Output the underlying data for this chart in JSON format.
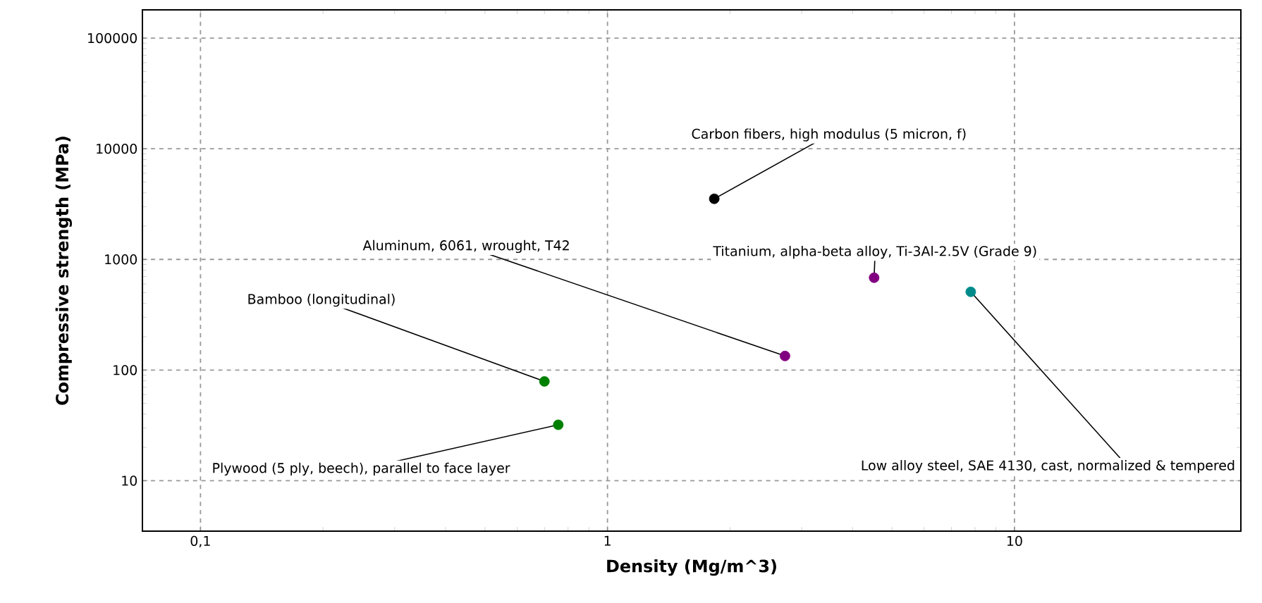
{
  "chart_data": {
    "type": "scatter",
    "xlabel": "Density (Mg/m^3)",
    "ylabel": "Compressive strength (MPa)",
    "x": [
      0.7,
      0.757,
      1.83,
      2.73,
      4.52,
      7.81
    ],
    "values": [
      79,
      32,
      3530,
      134,
      683,
      509
    ],
    "colors": [
      "#008000",
      "#008000",
      "#000000",
      "#800080",
      "#800080",
      "#008b8b"
    ],
    "marker": "circle",
    "log": "xy",
    "grid": true,
    "xlim": [
      0.072,
      36
    ],
    "ylim": [
      3.5,
      180000
    ],
    "xticks": [
      {
        "value": 0.1,
        "label": "0,1"
      },
      1,
      10
    ],
    "yticks": [
      10,
      100,
      1000,
      10000,
      100000
    ],
    "annotations": [
      {
        "text": "Bamboo (longitudinal)",
        "x": 0.7,
        "y": 79
      },
      {
        "text": "Plywood (5 ply, beech), parallel to face layer",
        "x": 0.757,
        "y": 32
      },
      {
        "text": "Carbon fibers, high modulus (5 micron, f)",
        "x": 1.83,
        "y": 3530
      },
      {
        "text": "Aluminum, 6061, wrought, T42",
        "x": 2.73,
        "y": 134
      },
      {
        "text": "Titanium, alpha-beta alloy, Ti-3Al-2.5V (Grade 9)",
        "x": 4.52,
        "y": 683
      },
      {
        "text": "Low alloy steel, SAE 4130, cast, normalized & tempered",
        "x": 7.81,
        "y": 509
      }
    ]
  }
}
